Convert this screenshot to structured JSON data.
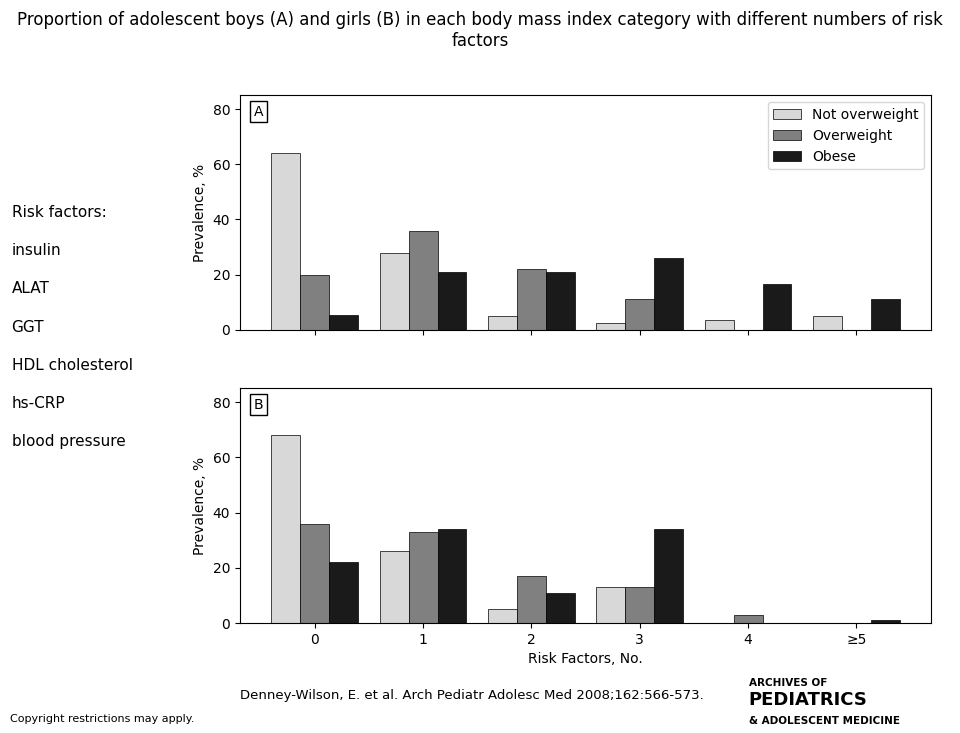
{
  "title": "Proportion of adolescent boys (A) and girls (B) in each body mass index category with different numbers of risk factors",
  "annotations": {
    "side_header": "Risk factors:",
    "side_items": [
      "insulin",
      "ALAT",
      "GGT",
      "HDL cholesterol",
      "hs-CRP",
      "blood pressure"
    ],
    "citation": "Denney-Wilson, E. et al. Arch Pediatr Adolesc Med 2008;162:566-573.",
    "copyright": "Copyright restrictions may apply.",
    "logo": [
      "ARCHIVES OF",
      "PEDIATRICS",
      "& ADOLESCENT MEDICINE"
    ]
  },
  "chart_data": [
    {
      "type": "bar",
      "title": "A",
      "categories": [
        "0",
        "1",
        "2",
        "3",
        "4",
        "≥5"
      ],
      "ylabel": "Prevalence, %",
      "ylim": [
        0,
        85
      ],
      "yticks": [
        0,
        20,
        40,
        60,
        80
      ],
      "tick_labels": "y",
      "legend": "upper right",
      "series": [
        {
          "name": "Not overweight",
          "color": "#d8d8d8",
          "values": [
            64,
            28,
            5,
            2.5,
            3.5,
            5
          ]
        },
        {
          "name": "Overweight",
          "color": "#808080",
          "values": [
            20,
            36,
            22,
            11,
            0,
            0
          ]
        },
        {
          "name": "Obese",
          "color": "#1a1a1a",
          "values": [
            5.5,
            21,
            21,
            26,
            16.5,
            11
          ]
        }
      ]
    },
    {
      "type": "bar",
      "title": "B",
      "categories": [
        "0",
        "1",
        "2",
        "3",
        "4",
        "≥5"
      ],
      "xlabel": "Risk Factors, No.",
      "ylabel": "Prevalence, %",
      "ylim": [
        0,
        85
      ],
      "yticks": [
        0,
        20,
        40,
        60,
        80
      ],
      "series": [
        {
          "name": "Not overweight",
          "color": "#d8d8d8",
          "values": [
            68,
            26,
            5,
            13,
            0,
            0
          ]
        },
        {
          "name": "Overweight",
          "color": "#808080",
          "values": [
            36,
            33,
            17,
            13,
            3,
            0
          ]
        },
        {
          "name": "Obese",
          "color": "#1a1a1a",
          "values": [
            22,
            34,
            11,
            34,
            0,
            1
          ]
        }
      ]
    }
  ]
}
